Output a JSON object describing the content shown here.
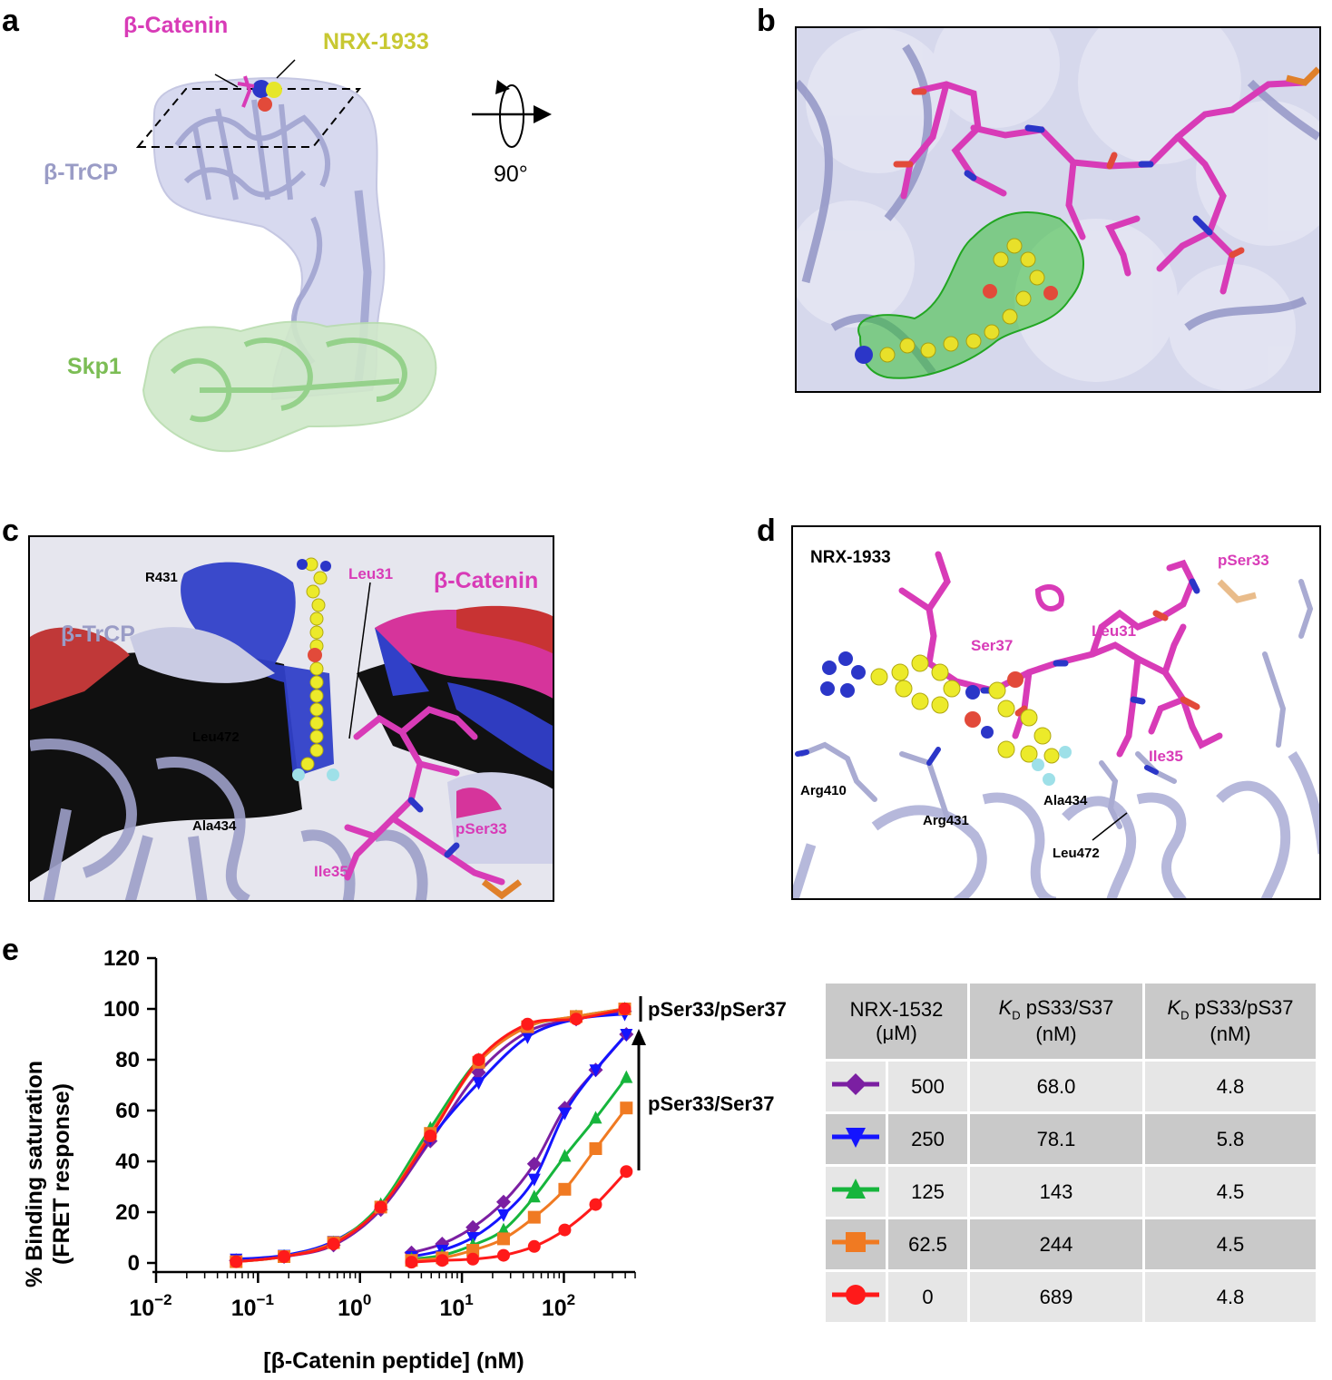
{
  "panel_letters": {
    "a": "a",
    "b": "b",
    "c": "c",
    "d": "d",
    "e": "e"
  },
  "panel_a": {
    "beta_catenin": "β-Catenin",
    "nrx": "NRX-1933",
    "btrcp": "β-TrCP",
    "skp1": "Skp1",
    "rotation": "90°"
  },
  "panel_c": {
    "r431": "R431",
    "btrcp": "β-TrCP",
    "beta_catenin": "β-Catenin",
    "leu31": "Leu31",
    "leu472": "Leu472",
    "ala434": "Ala434",
    "pser33": "pSer33",
    "ile35": "Ile35"
  },
  "panel_d": {
    "nrx": "NRX-1933",
    "pser33": "pSer33",
    "ser37": "Ser37",
    "leu31": "Leu31",
    "ile35": "Ile35",
    "arg410": "Arg410",
    "arg431": "Arg431",
    "ala434": "Ala434",
    "leu472": "Leu472"
  },
  "colors": {
    "magenta": "#d83bb7",
    "yellow": "#c8c832",
    "lavender": "#9a9cc6",
    "green": "#7cbd55",
    "purple": "#7b1fa2",
    "blue": "#1414ff",
    "sgreen": "#16b53c",
    "orange": "#f07a22",
    "red": "#ff1a1a"
  },
  "chart_data": {
    "type": "scatter",
    "xlabel": "[β-Catenin peptide] (nM)",
    "ylabel_line1": "% Binding saturation",
    "ylabel_line2": "(FRET response)",
    "xscale": "log",
    "xlim": [
      0.01,
      500
    ],
    "ylim": [
      0,
      120
    ],
    "yticks": [
      "0",
      "20",
      "40",
      "60",
      "80",
      "100",
      "120"
    ],
    "xticks": [
      {
        "base": "10",
        "exp": "−2"
      },
      {
        "base": "10",
        "exp": "−1"
      },
      {
        "base": "10",
        "exp": "0"
      },
      {
        "base": "10",
        "exp": "1"
      },
      {
        "base": "10",
        "exp": "2"
      }
    ],
    "x": [
      0.061,
      0.18,
      0.55,
      1.6,
      4.9,
      14.6,
      44,
      132,
      395
    ],
    "x_low": [
      3.2,
      6.4,
      12.8,
      25.6,
      51.2,
      102,
      205,
      410
    ],
    "series_high": [
      {
        "name": "500",
        "marker": "diamond",
        "color": "#7b1fa2",
        "values": [
          1,
          2.5,
          7,
          21,
          48,
          75,
          91,
          96,
          99
        ]
      },
      {
        "name": "250",
        "marker": "tri-down",
        "color": "#1414ff",
        "values": [
          1.5,
          3,
          8.5,
          22,
          49,
          71,
          89,
          96,
          98
        ]
      },
      {
        "name": "125",
        "marker": "tri-up",
        "color": "#16b53c",
        "values": [
          0.5,
          2.5,
          8,
          23,
          53,
          80,
          93,
          97,
          100
        ]
      },
      {
        "name": "62.5",
        "marker": "square",
        "color": "#f07a22",
        "values": [
          0.5,
          2.5,
          8,
          22,
          51,
          79,
          93,
          97,
          100
        ]
      },
      {
        "name": "0",
        "marker": "circle",
        "color": "#ff1a1a",
        "values": [
          0.5,
          2.5,
          7.5,
          22,
          50,
          80,
          94,
          96,
          100
        ]
      }
    ],
    "series_low": [
      {
        "name": "500",
        "marker": "diamond",
        "color": "#7b1fa2",
        "values": [
          4,
          7.5,
          14,
          24,
          39,
          61,
          76,
          90
        ]
      },
      {
        "name": "250",
        "marker": "tri-down",
        "color": "#1414ff",
        "values": [
          2.5,
          5,
          10,
          19,
          33,
          59,
          76,
          90
        ]
      },
      {
        "name": "125",
        "marker": "tri-up",
        "color": "#16b53c",
        "values": [
          1.5,
          3,
          7,
          13,
          26,
          42,
          57,
          73
        ]
      },
      {
        "name": "62.5",
        "marker": "square",
        "color": "#f07a22",
        "values": [
          1,
          2,
          5,
          9.5,
          18,
          29,
          45,
          61
        ]
      },
      {
        "name": "0",
        "marker": "circle",
        "color": "#ff1a1a",
        "values": [
          0.3,
          1,
          1.5,
          3,
          6.5,
          13,
          23,
          36
        ]
      }
    ],
    "annot_pser37": "pSer33/pSer37",
    "annot_ser37": "pSer33/Ser37"
  },
  "table": {
    "headers": [
      {
        "line1": "NRX-1532",
        "line2": "(μM)"
      },
      {
        "k": "K",
        "sub": "D",
        "rest": " pS33/S37",
        "line2": "(nM)"
      },
      {
        "k": "K",
        "sub": "D",
        "rest": " pS33/pS37",
        "line2": "(nM)"
      }
    ],
    "rows": [
      {
        "conc": "500",
        "kd1": "68.0",
        "kd2": "4.8",
        "color": "#7b1fa2",
        "marker": "diamond"
      },
      {
        "conc": "250",
        "kd1": "78.1",
        "kd2": "5.8",
        "color": "#1414ff",
        "marker": "tri-down"
      },
      {
        "conc": "125",
        "kd1": "143",
        "kd2": "4.5",
        "color": "#16b53c",
        "marker": "tri-up"
      },
      {
        "conc": "62.5",
        "kd1": "244",
        "kd2": "4.5",
        "color": "#f07a22",
        "marker": "square"
      },
      {
        "conc": "0",
        "kd1": "689",
        "kd2": "4.8",
        "color": "#ff1a1a",
        "marker": "circle"
      }
    ]
  }
}
